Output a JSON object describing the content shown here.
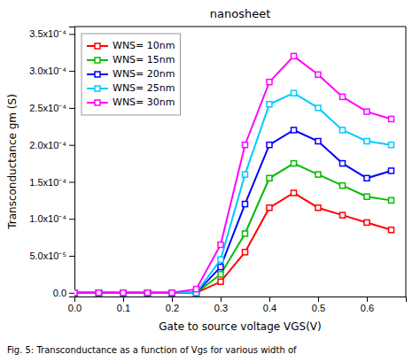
{
  "chart_data": {
    "type": "line",
    "title": "nanosheet",
    "x_label": "Gate to source voltage VGS(V)",
    "y_label": "Transconductance gm (S)",
    "caption": "Fig. 5: Transconductance as a function of Vgs for various width of",
    "x": [
      0.0,
      0.05,
      0.1,
      0.15,
      0.2,
      0.25,
      0.3,
      0.35,
      0.4,
      0.45,
      0.5,
      0.55,
      0.6,
      0.65
    ],
    "series": [
      {
        "name": "WNS= 10nm",
        "color": "#ff0000",
        "values": [
          0.0,
          0.0,
          0.0,
          0.0,
          0.0,
          0.0,
          1.5e-05,
          5.5e-05,
          0.000115,
          0.000135,
          0.000115,
          0.000105,
          9.5e-05,
          8.5e-05
        ]
      },
      {
        "name": "WNS= 15nm",
        "color": "#00bb00",
        "values": [
          0.0,
          0.0,
          0.0,
          0.0,
          0.0,
          0.0,
          2.5e-05,
          8e-05,
          0.000155,
          0.000175,
          0.00016,
          0.000145,
          0.00013,
          0.000125
        ]
      },
      {
        "name": "WNS= 20nm",
        "color": "#0000ff",
        "values": [
          0.0,
          0.0,
          0.0,
          0.0,
          0.0,
          0.0,
          3.5e-05,
          0.00012,
          0.0002,
          0.00022,
          0.000205,
          0.000175,
          0.000155,
          0.000165
        ]
      },
      {
        "name": "WNS= 25nm",
        "color": "#00ccff",
        "values": [
          0.0,
          0.0,
          0.0,
          0.0,
          0.0,
          0.0,
          4.5e-05,
          0.00016,
          0.000255,
          0.00027,
          0.00025,
          0.00022,
          0.000205,
          0.0002
        ]
      },
      {
        "name": "WNS= 30nm",
        "color": "#ff00ff",
        "values": [
          0.0,
          0.0,
          0.0,
          0.0,
          0.0,
          5e-06,
          6.5e-05,
          0.0002,
          0.000285,
          0.00032,
          0.000295,
          0.000265,
          0.000245,
          0.000235
        ]
      }
    ],
    "xlim": [
      0.0,
      0.68
    ],
    "ylim": [
      -5e-06,
      0.00036
    ],
    "xticks": [
      {
        "value": 0.0,
        "label": "0.0"
      },
      0.1,
      0.2,
      0.3,
      0.4,
      0.5,
      0.6
    ],
    "yticks": [
      {
        "value": 0.0,
        "label": "0.0"
      },
      {
        "value": 5e-05,
        "label": "5.0x10⁻⁵"
      },
      {
        "value": 0.0001,
        "label": "1.0x10⁻⁴"
      },
      {
        "value": 0.00015,
        "label": "1.5x10⁻⁴"
      },
      {
        "value": 0.0002,
        "label": "2.0x10⁻⁴"
      },
      {
        "value": 0.00025,
        "label": "2.5x10⁻⁴"
      },
      {
        "value": 0.0003,
        "label": "3.0x10⁻⁴"
      },
      {
        "value": 0.00035,
        "label": "3.5x10⁻⁴"
      }
    ],
    "marker": "square",
    "legend": "upper left",
    "grid": false
  }
}
